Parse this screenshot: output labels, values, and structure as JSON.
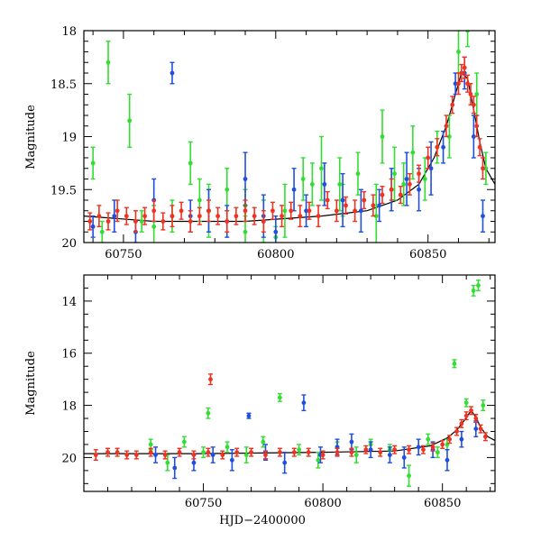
{
  "chart_data": [
    {
      "type": "scatter",
      "panel": "top",
      "xlabel": "",
      "ylabel": "Magnitude",
      "xlim": [
        60737,
        60872
      ],
      "ylim": [
        20,
        18
      ],
      "y_inverted": true,
      "xticks": [
        60750,
        60800,
        60850
      ],
      "yticks": [
        18,
        18.5,
        19,
        19.5,
        20
      ],
      "ytick_labels": [
        "18",
        "18.5",
        "19",
        "19.5",
        "20"
      ],
      "colors": {
        "green": "#33dd33",
        "blue": "#1f4fe0",
        "red": "#ee3322",
        "model": "#000000"
      },
      "series": [
        {
          "color_key": "green",
          "x": [
            60740,
            60745,
            60752,
            60760,
            60766,
            60772,
            60778,
            60784,
            60790,
            60796,
            60803,
            60809,
            60815,
            60821,
            60827,
            60833,
            60839,
            60845,
            60849,
            60853,
            60857,
            60860,
            60863,
            60866,
            60869,
            60743,
            60756,
            60775,
            60790,
            60800,
            60812,
            60822,
            60835,
            60842
          ],
          "y": [
            19.25,
            18.3,
            18.85,
            19.85,
            19.75,
            19.25,
            19.7,
            19.5,
            19.65,
            19.8,
            19.7,
            19.4,
            19.3,
            19.45,
            19.35,
            19.75,
            19.35,
            19.15,
            19.4,
            19.1,
            19.0,
            18.2,
            18.0,
            18.6,
            19.3,
            19.9,
            19.8,
            19.6,
            19.9,
            19.95,
            19.45,
            19.6,
            19.0,
            19.45
          ],
          "err": [
            0.15,
            0.2,
            0.25,
            0.2,
            0.15,
            0.2,
            0.25,
            0.2,
            0.15,
            0.2,
            0.25,
            0.2,
            0.3,
            0.25,
            0.2,
            0.3,
            0.25,
            0.25,
            0.2,
            0.15,
            0.2,
            0.2,
            0.15,
            0.2,
            0.15,
            0.1,
            0.1,
            0.2,
            0.15,
            0.1,
            0.2,
            0.15,
            0.25,
            0.2
          ]
        },
        {
          "color_key": "blue",
          "x": [
            60740,
            60747,
            60754,
            60760,
            60766,
            60772,
            60778,
            60784,
            60790,
            60796,
            60800,
            60806,
            60810,
            60816,
            60822,
            60828,
            60834,
            60838,
            60843,
            60847,
            60851,
            60855,
            60859,
            60862,
            60865,
            60868
          ],
          "y": [
            19.85,
            19.75,
            19.9,
            19.6,
            18.4,
            19.75,
            19.7,
            19.8,
            19.4,
            19.75,
            19.9,
            19.5,
            19.7,
            19.45,
            19.6,
            19.7,
            19.65,
            19.5,
            19.4,
            19.5,
            19.3,
            19.1,
            18.5,
            18.4,
            19.0,
            19.75
          ],
          "err": [
            0.1,
            0.15,
            0.1,
            0.2,
            0.1,
            0.15,
            0.2,
            0.15,
            0.25,
            0.2,
            0.15,
            0.2,
            0.15,
            0.2,
            0.25,
            0.2,
            0.15,
            0.2,
            0.25,
            0.2,
            0.25,
            0.15,
            0.1,
            0.15,
            0.2,
            0.15
          ]
        },
        {
          "color_key": "red",
          "x": [
            60739,
            60742,
            60745,
            60748,
            60751,
            60754,
            60757,
            60760,
            60763,
            60766,
            60769,
            60772,
            60775,
            60778,
            60781,
            60784,
            60787,
            60790,
            60793,
            60796,
            60799,
            60802,
            60805,
            60808,
            60811,
            60814,
            60817,
            60820,
            60823,
            60826,
            60829,
            60832,
            60835,
            60838,
            60841,
            60844,
            60847,
            60850,
            60853,
            60856,
            60858,
            60860,
            60861,
            60862,
            60863,
            60864,
            60865,
            60866,
            60867,
            60868
          ],
          "y": [
            19.8,
            19.75,
            19.8,
            19.7,
            19.75,
            19.8,
            19.75,
            19.7,
            19.8,
            19.75,
            19.7,
            19.8,
            19.75,
            19.7,
            19.75,
            19.8,
            19.75,
            19.7,
            19.75,
            19.8,
            19.7,
            19.75,
            19.7,
            19.75,
            19.7,
            19.75,
            19.6,
            19.7,
            19.65,
            19.7,
            19.6,
            19.65,
            19.55,
            19.5,
            19.55,
            19.45,
            19.35,
            19.2,
            19.1,
            18.9,
            18.7,
            18.5,
            18.4,
            18.35,
            18.5,
            18.6,
            18.7,
            18.9,
            19.1,
            19.3
          ],
          "err": [
            0.08,
            0.1,
            0.08,
            0.1,
            0.08,
            0.1,
            0.08,
            0.1,
            0.08,
            0.1,
            0.08,
            0.1,
            0.08,
            0.1,
            0.08,
            0.1,
            0.08,
            0.1,
            0.08,
            0.1,
            0.08,
            0.1,
            0.08,
            0.1,
            0.08,
            0.1,
            0.08,
            0.1,
            0.08,
            0.1,
            0.08,
            0.1,
            0.08,
            0.1,
            0.08,
            0.1,
            0.08,
            0.1,
            0.08,
            0.1,
            0.08,
            0.1,
            0.08,
            0.1,
            0.08,
            0.1,
            0.08,
            0.1,
            0.08,
            0.1
          ]
        }
      ],
      "model_curve": {
        "x": [
          60737,
          60760,
          60790,
          60815,
          60830,
          60840,
          60847,
          60852,
          60856,
          60859,
          60861,
          60863,
          60865,
          60867,
          60869,
          60872
        ],
        "y": [
          19.75,
          19.8,
          19.8,
          19.75,
          19.7,
          19.6,
          19.45,
          19.2,
          18.9,
          18.6,
          18.4,
          18.45,
          18.75,
          19.05,
          19.3,
          19.45
        ]
      }
    },
    {
      "type": "scatter",
      "panel": "bottom",
      "xlabel": "HJD−2400000",
      "ylabel": "Magnitude",
      "xlim": [
        60700,
        60872
      ],
      "ylim": [
        21.3,
        13
      ],
      "y_inverted": true,
      "xticks": [
        60750,
        60800,
        60850
      ],
      "yticks": [
        14,
        16,
        18,
        20
      ],
      "ytick_labels": [
        "14",
        "16",
        "18",
        "20"
      ],
      "colors": {
        "green": "#33dd33",
        "blue": "#1f4fe0",
        "red": "#ee3322",
        "model": "#000000"
      },
      "series": [
        {
          "color_key": "green",
          "x": [
            60728,
            60735,
            60742,
            60750,
            60752,
            60760,
            60768,
            60775,
            60782,
            60790,
            60798,
            60806,
            60814,
            60820,
            60828,
            60836,
            60844,
            60848,
            60852,
            60855,
            60860,
            60863,
            60865,
            60867
          ],
          "y": [
            19.5,
            20.2,
            19.4,
            19.8,
            18.3,
            19.6,
            19.9,
            19.4,
            17.7,
            19.7,
            20.1,
            19.6,
            19.9,
            19.5,
            19.7,
            20.7,
            19.3,
            19.8,
            19.5,
            16.4,
            17.9,
            13.6,
            13.4,
            18.0
          ],
          "err": [
            0.2,
            0.3,
            0.2,
            0.2,
            0.2,
            0.2,
            0.3,
            0.2,
            0.15,
            0.2,
            0.3,
            0.2,
            0.3,
            0.2,
            0.2,
            0.4,
            0.2,
            0.2,
            0.2,
            0.15,
            0.15,
            0.2,
            0.2,
            0.2
          ]
        },
        {
          "color_key": "blue",
          "x": [
            60730,
            60738,
            60746,
            60754,
            60762,
            60769,
            60776,
            60784,
            60792,
            60799,
            60806,
            60812,
            60820,
            60828,
            60834,
            60840,
            60846,
            60852,
            60858,
            60864
          ],
          "y": [
            19.9,
            20.4,
            20.2,
            19.9,
            20.1,
            18.4,
            19.8,
            20.2,
            17.9,
            19.9,
            19.6,
            19.4,
            19.7,
            19.9,
            20.0,
            19.6,
            19.7,
            20.1,
            19.3,
            18.9
          ],
          "err": [
            0.3,
            0.4,
            0.3,
            0.3,
            0.4,
            0.1,
            0.3,
            0.4,
            0.3,
            0.3,
            0.3,
            0.3,
            0.3,
            0.3,
            0.4,
            0.3,
            0.3,
            0.4,
            0.3,
            0.3
          ]
        },
        {
          "color_key": "red",
          "x": [
            60705,
            60710,
            60714,
            60718,
            60722,
            60728,
            60734,
            60740,
            60746,
            60752,
            60758,
            60764,
            60770,
            60776,
            60782,
            60788,
            60794,
            60800,
            60806,
            60812,
            60818,
            60824,
            60830,
            60836,
            60842,
            60846,
            60850,
            60853,
            60856,
            60858,
            60860,
            60862,
            60864,
            60866,
            60868,
            60753
          ],
          "y": [
            19.9,
            19.8,
            19.8,
            19.9,
            19.9,
            19.8,
            19.9,
            19.8,
            19.9,
            19.8,
            19.9,
            19.8,
            19.8,
            19.9,
            19.8,
            19.8,
            19.8,
            19.9,
            19.8,
            19.8,
            19.7,
            19.8,
            19.7,
            19.7,
            19.7,
            19.6,
            19.5,
            19.3,
            19.0,
            18.7,
            18.4,
            18.2,
            18.5,
            18.9,
            19.2,
            17.0
          ],
          "err": [
            0.2,
            0.15,
            0.15,
            0.15,
            0.15,
            0.15,
            0.15,
            0.15,
            0.15,
            0.15,
            0.15,
            0.15,
            0.15,
            0.15,
            0.15,
            0.15,
            0.15,
            0.15,
            0.15,
            0.15,
            0.15,
            0.15,
            0.15,
            0.15,
            0.15,
            0.15,
            0.15,
            0.15,
            0.15,
            0.15,
            0.15,
            0.15,
            0.15,
            0.15,
            0.15,
            0.2
          ]
        }
      ],
      "model_curve": {
        "x": [
          60700,
          60750,
          60800,
          60830,
          60845,
          60852,
          60856,
          60859,
          60862,
          60864,
          60866,
          60869,
          60872
        ],
        "y": [
          19.85,
          19.85,
          19.8,
          19.75,
          19.55,
          19.25,
          18.95,
          18.6,
          18.2,
          18.45,
          18.85,
          19.2,
          19.35
        ]
      }
    }
  ]
}
